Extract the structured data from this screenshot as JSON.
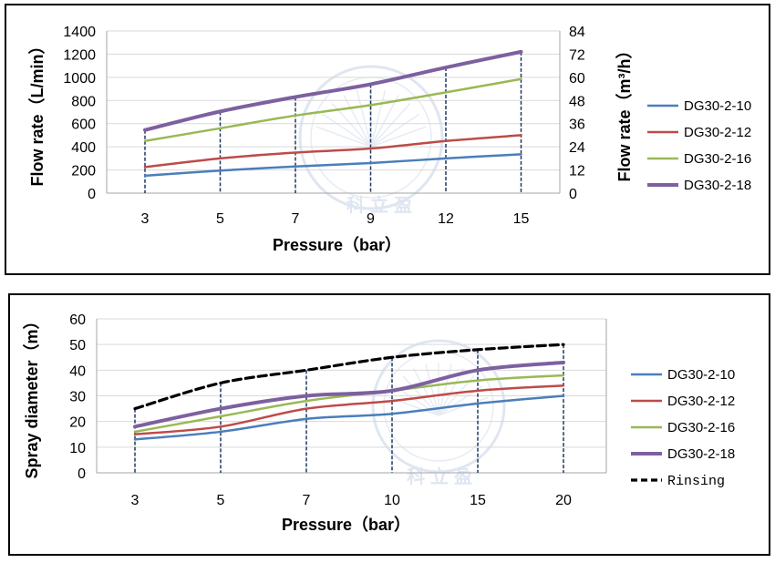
{
  "chart_data": [
    {
      "type": "line",
      "categories": [
        "3",
        "5",
        "7",
        "9",
        "12",
        "15"
      ],
      "xlabel": "Pressure（bar）",
      "ylabel": "Flow rate（L/min）",
      "ylabel_right": "Flow rate（m³/h）",
      "ylim": [
        0,
        1400
      ],
      "yticks": [
        "0",
        "200",
        "400",
        "600",
        "800",
        "1000",
        "1200",
        "1400"
      ],
      "ylim_right": [
        0,
        84
      ],
      "yticks_right": [
        "0",
        "12",
        "24",
        "36",
        "48",
        "60",
        "72",
        "84"
      ],
      "grid": "horizontal",
      "legend_position": "right",
      "series": [
        {
          "name": "DG30-2-10",
          "color": "#4a7ebb",
          "values": [
            150,
            195,
            230,
            260,
            300,
            335
          ]
        },
        {
          "name": "DG30-2-12",
          "color": "#be4b48",
          "values": [
            225,
            300,
            350,
            385,
            450,
            500
          ]
        },
        {
          "name": "DG30-2-16",
          "color": "#98b954",
          "values": [
            450,
            560,
            670,
            760,
            870,
            985
          ]
        },
        {
          "name": "DG30-2-18",
          "color": "#7d60a0",
          "values": [
            545,
            705,
            830,
            940,
            1085,
            1220
          ]
        }
      ]
    },
    {
      "type": "line",
      "categories": [
        "3",
        "5",
        "7",
        "10",
        "15",
        "20"
      ],
      "xlabel": "Pressure（bar）",
      "ylabel": "Spray diameter（m）",
      "ylim": [
        0,
        60
      ],
      "yticks": [
        "0",
        "10",
        "20",
        "30",
        "40",
        "50",
        "60"
      ],
      "grid": "horizontal",
      "legend_position": "right",
      "series": [
        {
          "name": "DG30-2-10",
          "color": "#4a7ebb",
          "values": [
            13,
            16,
            21,
            23,
            27,
            30
          ]
        },
        {
          "name": "DG30-2-12",
          "color": "#be4b48",
          "values": [
            15,
            18,
            25,
            28,
            32,
            34
          ]
        },
        {
          "name": "DG30-2-16",
          "color": "#98b954",
          "values": [
            16,
            22,
            28,
            32,
            36,
            38
          ]
        },
        {
          "name": "DG30-2-18",
          "color": "#7d60a0",
          "values": [
            18,
            25,
            30,
            32,
            40,
            43
          ]
        },
        {
          "name": "Rinsing",
          "color": "#000000",
          "dashed": true,
          "values": [
            25,
            35,
            40,
            45,
            48,
            50
          ]
        }
      ]
    }
  ],
  "watermark": {
    "text": "科立盈"
  }
}
